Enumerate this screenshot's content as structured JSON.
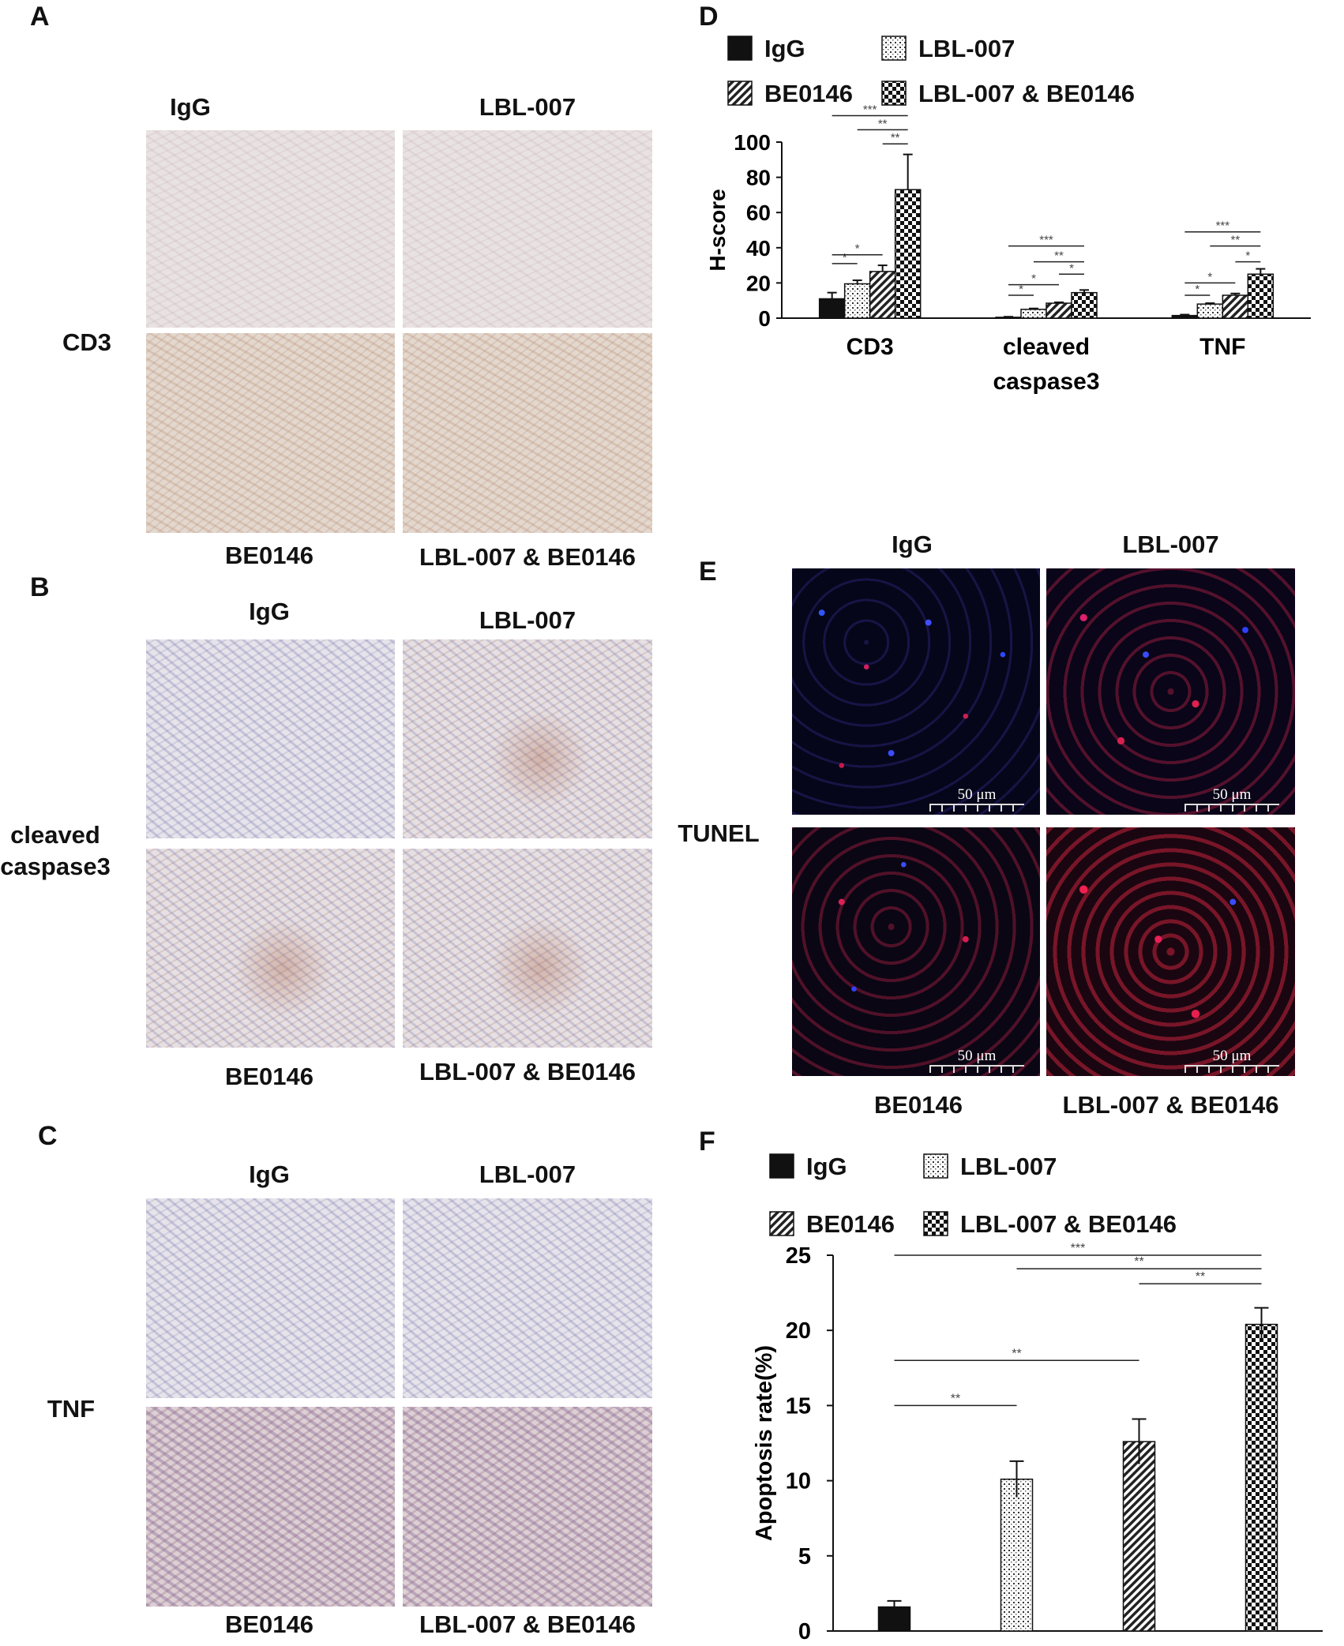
{
  "panels": {
    "A": {
      "letter": "A",
      "row_label": "CD3",
      "top_left": "IgG",
      "top_right": "LBL-007",
      "bottom_left": "BE0146",
      "bottom_right": "LBL-007 & BE0146"
    },
    "B": {
      "letter": "B",
      "row_label_1": "cleaved",
      "row_label_2": "caspase3",
      "top_left": "IgG",
      "top_right": "LBL-007",
      "bottom_left": "BE0146",
      "bottom_right": "LBL-007 & BE0146"
    },
    "C": {
      "letter": "C",
      "row_label": "TNF",
      "top_left": "IgG",
      "top_right": "LBL-007",
      "bottom_left": "BE0146",
      "bottom_right": "LBL-007 & BE0146"
    },
    "D": {
      "letter": "D"
    },
    "E": {
      "letter": "E",
      "row_label": "TUNEL",
      "top_left": "IgG",
      "top_right": "LBL-007",
      "bottom_left": "BE0146",
      "bottom_right": "LBL-007 & BE0146",
      "scale_bar": "50 μm"
    },
    "F": {
      "letter": "F"
    }
  },
  "chart_data": [
    {
      "panel": "D",
      "type": "bar",
      "ylabel": "H-score",
      "ylim": [
        0,
        100
      ],
      "yticks": [
        0,
        20,
        40,
        60,
        80,
        100
      ],
      "categories": [
        "CD3",
        "cleaved caspase3",
        "TNF"
      ],
      "category_label_lines": [
        [
          "CD3"
        ],
        [
          "cleaved",
          "caspase3"
        ],
        [
          "TNF"
        ]
      ],
      "series": [
        {
          "name": "IgG",
          "pattern": "solid",
          "values": [
            11,
            0.5,
            1.5
          ],
          "errors": [
            3.5,
            0.3,
            0.5
          ]
        },
        {
          "name": "LBL-007",
          "pattern": "dots",
          "values": [
            19.5,
            5,
            8
          ],
          "errors": [
            2,
            0.5,
            0.5
          ]
        },
        {
          "name": "BE0146",
          "pattern": "hatch",
          "values": [
            26.5,
            8.5,
            13
          ],
          "errors": [
            3.5,
            0.5,
            1
          ]
        },
        {
          "name": "LBL-007 & BE0146",
          "pattern": "checker",
          "values": [
            73,
            14.5,
            25
          ],
          "errors": [
            20,
            1.5,
            3
          ]
        }
      ],
      "legend_layout": "top, 2x2",
      "significance": [
        {
          "group": 0,
          "from": 0,
          "to": 1,
          "label": "*",
          "y": 31
        },
        {
          "group": 0,
          "from": 0,
          "to": 2,
          "label": "*",
          "y": 36
        },
        {
          "group": 0,
          "from": 0,
          "to": 3,
          "label": "***",
          "y": 115
        },
        {
          "group": 0,
          "from": 1,
          "to": 3,
          "label": "**",
          "y": 107
        },
        {
          "group": 0,
          "from": 2,
          "to": 3,
          "label": "**",
          "y": 99
        },
        {
          "group": 1,
          "from": 0,
          "to": 1,
          "label": "*",
          "y": 13
        },
        {
          "group": 1,
          "from": 0,
          "to": 2,
          "label": "*",
          "y": 19
        },
        {
          "group": 1,
          "from": 2,
          "to": 3,
          "label": "*",
          "y": 25
        },
        {
          "group": 1,
          "from": 1,
          "to": 3,
          "label": "**",
          "y": 32
        },
        {
          "group": 1,
          "from": 0,
          "to": 3,
          "label": "***",
          "y": 41
        },
        {
          "group": 2,
          "from": 0,
          "to": 1,
          "label": "*",
          "y": 13
        },
        {
          "group": 2,
          "from": 0,
          "to": 2,
          "label": "*",
          "y": 20
        },
        {
          "group": 2,
          "from": 2,
          "to": 3,
          "label": "*",
          "y": 32
        },
        {
          "group": 2,
          "from": 1,
          "to": 3,
          "label": "**",
          "y": 41
        },
        {
          "group": 2,
          "from": 0,
          "to": 3,
          "label": "***",
          "y": 49
        }
      ]
    },
    {
      "panel": "F",
      "type": "bar",
      "ylabel": "Apoptosis rate(%)",
      "ylim": [
        0,
        25
      ],
      "yticks": [
        0,
        5,
        10,
        15,
        20,
        25
      ],
      "series": [
        {
          "name": "IgG",
          "pattern": "solid",
          "value": 1.6,
          "error": 0.4
        },
        {
          "name": "LBL-007",
          "pattern": "dots",
          "value": 10.1,
          "error": 1.2
        },
        {
          "name": "BE0146",
          "pattern": "hatch",
          "value": 12.6,
          "error": 1.5
        },
        {
          "name": "LBL-007 & BE0146",
          "pattern": "checker",
          "value": 20.4,
          "error": 1.1
        }
      ],
      "legend_layout": "top, 2x2",
      "significance": [
        {
          "from": 0,
          "to": 1,
          "label": "**",
          "y": 15.0
        },
        {
          "from": 0,
          "to": 2,
          "label": "**",
          "y": 18.0
        },
        {
          "from": 0,
          "to": 3,
          "label": "***",
          "y": 25.0
        },
        {
          "from": 1,
          "to": 3,
          "label": "**",
          "y": 24.1
        },
        {
          "from": 2,
          "to": 3,
          "label": "**",
          "y": 23.1
        }
      ]
    }
  ]
}
